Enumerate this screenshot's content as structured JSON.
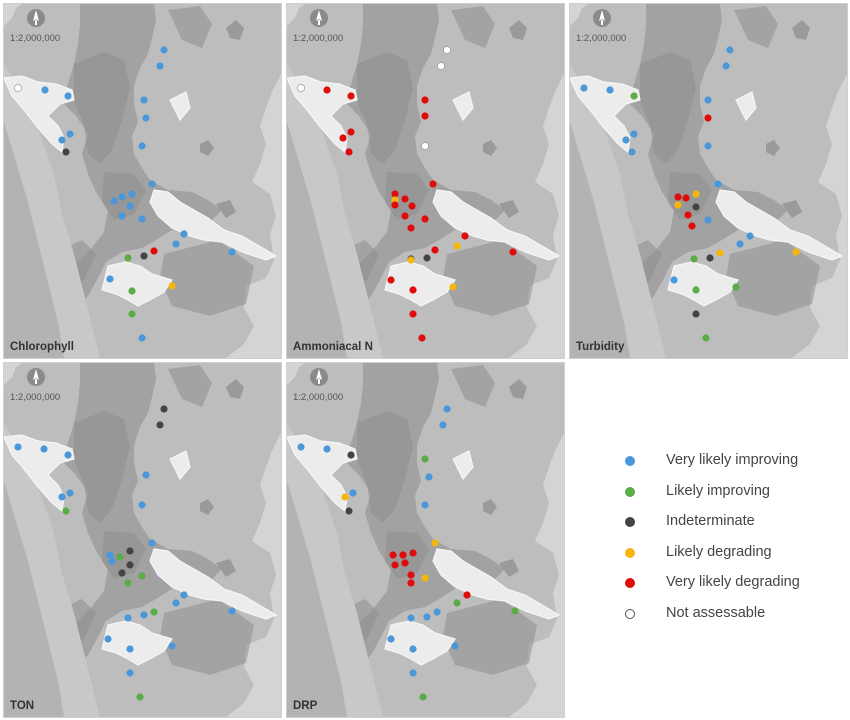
{
  "categories": {
    "vi": {
      "label": "Very likely improving",
      "color": "#4a97d9"
    },
    "li": {
      "label": "Likely improving",
      "color": "#5aac46"
    },
    "ind": {
      "label": "Indeterminate",
      "color": "#444444"
    },
    "ld": {
      "label": "Likely degrading",
      "color": "#f6b60c"
    },
    "vd": {
      "label": "Very likely degrading",
      "color": "#e00b0b"
    },
    "na": {
      "label": "Not assessable",
      "color": "#ffffff"
    }
  },
  "legend_order": [
    "vi",
    "li",
    "ind",
    "ld",
    "vd",
    "na"
  ],
  "scale_text": "1:2,000,000",
  "north_icon": "north-arrow-icon",
  "panels": [
    {
      "label": "Chlorophyll",
      "sites": [
        [
          "na",
          14,
          84
        ],
        [
          "vi",
          41,
          86
        ],
        [
          "vi",
          64,
          92
        ],
        [
          "vi",
          160,
          46
        ],
        [
          "vi",
          156,
          62
        ],
        [
          "vi",
          140,
          96
        ],
        [
          "vi",
          142,
          114
        ],
        [
          "vi",
          66,
          130
        ],
        [
          "vi",
          58,
          136
        ],
        [
          "ind",
          62,
          148
        ],
        [
          "vi",
          138,
          142
        ],
        [
          "vi",
          148,
          180
        ],
        [
          "vi",
          110,
          197
        ],
        [
          "vi",
          118,
          193
        ],
        [
          "vi",
          128,
          190
        ],
        [
          "vi",
          126,
          202
        ],
        [
          "vi",
          118,
          212
        ],
        [
          "vi",
          138,
          215
        ],
        [
          "vi",
          180,
          230
        ],
        [
          "vi",
          172,
          240
        ],
        [
          "vi",
          228,
          248
        ],
        [
          "vd",
          150,
          247
        ],
        [
          "ind",
          140,
          252
        ],
        [
          "li",
          124,
          254
        ],
        [
          "ld",
          168,
          282
        ],
        [
          "li",
          128,
          287
        ],
        [
          "vi",
          106,
          275
        ],
        [
          "li",
          128,
          310
        ],
        [
          "vi",
          138,
          334
        ]
      ]
    },
    {
      "label": "Ammoniacal N",
      "sites": [
        [
          "na",
          14,
          84
        ],
        [
          "vd",
          40,
          86
        ],
        [
          "vd",
          64,
          92
        ],
        [
          "na",
          160,
          46
        ],
        [
          "na",
          154,
          62
        ],
        [
          "vd",
          138,
          96
        ],
        [
          "vd",
          138,
          112
        ],
        [
          "vd",
          64,
          128
        ],
        [
          "vd",
          56,
          134
        ],
        [
          "vd",
          62,
          148
        ],
        [
          "na",
          138,
          142
        ],
        [
          "vd",
          146,
          180
        ],
        [
          "vd",
          108,
          190
        ],
        [
          "vd",
          118,
          195
        ],
        [
          "ld",
          108,
          196
        ],
        [
          "vd",
          108,
          201
        ],
        [
          "vd",
          125,
          202
        ],
        [
          "vd",
          118,
          212
        ],
        [
          "vd",
          138,
          215
        ],
        [
          "vd",
          124,
          224
        ],
        [
          "vd",
          178,
          232
        ],
        [
          "ld",
          170,
          242
        ],
        [
          "vd",
          226,
          248
        ],
        [
          "vd",
          148,
          246
        ],
        [
          "ind",
          140,
          254
        ],
        [
          "ind",
          124,
          255
        ],
        [
          "ld",
          124,
          256
        ],
        [
          "vd",
          104,
          276
        ],
        [
          "ld",
          166,
          283
        ],
        [
          "vd",
          126,
          286
        ],
        [
          "vd",
          126,
          310
        ],
        [
          "vd",
          135,
          334
        ]
      ]
    },
    {
      "label": "Turbidity",
      "sites": [
        [
          "vi",
          14,
          84
        ],
        [
          "vi",
          40,
          86
        ],
        [
          "li",
          64,
          92
        ],
        [
          "vi",
          160,
          46
        ],
        [
          "vi",
          156,
          62
        ],
        [
          "vi",
          138,
          96
        ],
        [
          "vd",
          138,
          114
        ],
        [
          "vi",
          64,
          130
        ],
        [
          "vi",
          56,
          136
        ],
        [
          "vi",
          62,
          148
        ],
        [
          "vi",
          138,
          142
        ],
        [
          "vi",
          148,
          180
        ],
        [
          "vd",
          108,
          193
        ],
        [
          "vd",
          116,
          194
        ],
        [
          "ld",
          126,
          190
        ],
        [
          "ld",
          108,
          201
        ],
        [
          "ind",
          126,
          203
        ],
        [
          "vd",
          118,
          211
        ],
        [
          "vd",
          122,
          222
        ],
        [
          "vi",
          138,
          216
        ],
        [
          "vi",
          180,
          232
        ],
        [
          "vi",
          170,
          240
        ],
        [
          "ld",
          226,
          248
        ],
        [
          "ld",
          150,
          249
        ],
        [
          "ind",
          140,
          254
        ],
        [
          "li",
          124,
          255
        ],
        [
          "vi",
          104,
          276
        ],
        [
          "li",
          166,
          283
        ],
        [
          "li",
          126,
          286
        ],
        [
          "ind",
          126,
          310
        ],
        [
          "li",
          136,
          334
        ]
      ]
    },
    {
      "label": "TON",
      "sites": [
        [
          "vi",
          14,
          84
        ],
        [
          "vi",
          40,
          86
        ],
        [
          "vi",
          64,
          92
        ],
        [
          "ind",
          160,
          46
        ],
        [
          "ind",
          156,
          62
        ],
        [
          "vi",
          142,
          112
        ],
        [
          "vi",
          66,
          130
        ],
        [
          "vi",
          58,
          134
        ],
        [
          "li",
          62,
          148
        ],
        [
          "vi",
          138,
          142
        ],
        [
          "vi",
          148,
          180
        ],
        [
          "vi",
          106,
          192
        ],
        [
          "vi",
          108,
          198
        ],
        [
          "li",
          116,
          194
        ],
        [
          "ind",
          126,
          188
        ],
        [
          "ind",
          126,
          202
        ],
        [
          "li",
          138,
          213
        ],
        [
          "ind",
          118,
          210
        ],
        [
          "li",
          124,
          220
        ],
        [
          "vi",
          180,
          232
        ],
        [
          "vi",
          172,
          240
        ],
        [
          "vi",
          228,
          248
        ],
        [
          "li",
          150,
          249
        ],
        [
          "vi",
          140,
          252
        ],
        [
          "vi",
          124,
          255
        ],
        [
          "vi",
          104,
          276
        ],
        [
          "vi",
          168,
          283
        ],
        [
          "vi",
          126,
          286
        ],
        [
          "vi",
          126,
          310
        ],
        [
          "li",
          136,
          334
        ]
      ]
    },
    {
      "label": "DRP",
      "sites": [
        [
          "vi",
          14,
          84
        ],
        [
          "vi",
          40,
          86
        ],
        [
          "ind",
          64,
          92
        ],
        [
          "vi",
          160,
          46
        ],
        [
          "vi",
          156,
          62
        ],
        [
          "li",
          138,
          96
        ],
        [
          "vi",
          142,
          114
        ],
        [
          "vi",
          66,
          130
        ],
        [
          "ld",
          58,
          134
        ],
        [
          "ind",
          62,
          148
        ],
        [
          "vi",
          138,
          142
        ],
        [
          "ld",
          148,
          180
        ],
        [
          "vd",
          106,
          192
        ],
        [
          "vd",
          116,
          192
        ],
        [
          "vd",
          126,
          190
        ],
        [
          "vd",
          118,
          200
        ],
        [
          "vd",
          108,
          202
        ],
        [
          "ld",
          138,
          215
        ],
        [
          "vd",
          124,
          212
        ],
        [
          "vd",
          124,
          220
        ],
        [
          "vd",
          180,
          232
        ],
        [
          "li",
          170,
          240
        ],
        [
          "li",
          228,
          248
        ],
        [
          "vi",
          150,
          249
        ],
        [
          "vi",
          140,
          254
        ],
        [
          "vi",
          124,
          255
        ],
        [
          "vi",
          104,
          276
        ],
        [
          "vi",
          168,
          283
        ],
        [
          "vi",
          126,
          286
        ],
        [
          "vi",
          126,
          310
        ],
        [
          "li",
          136,
          334
        ]
      ]
    }
  ]
}
